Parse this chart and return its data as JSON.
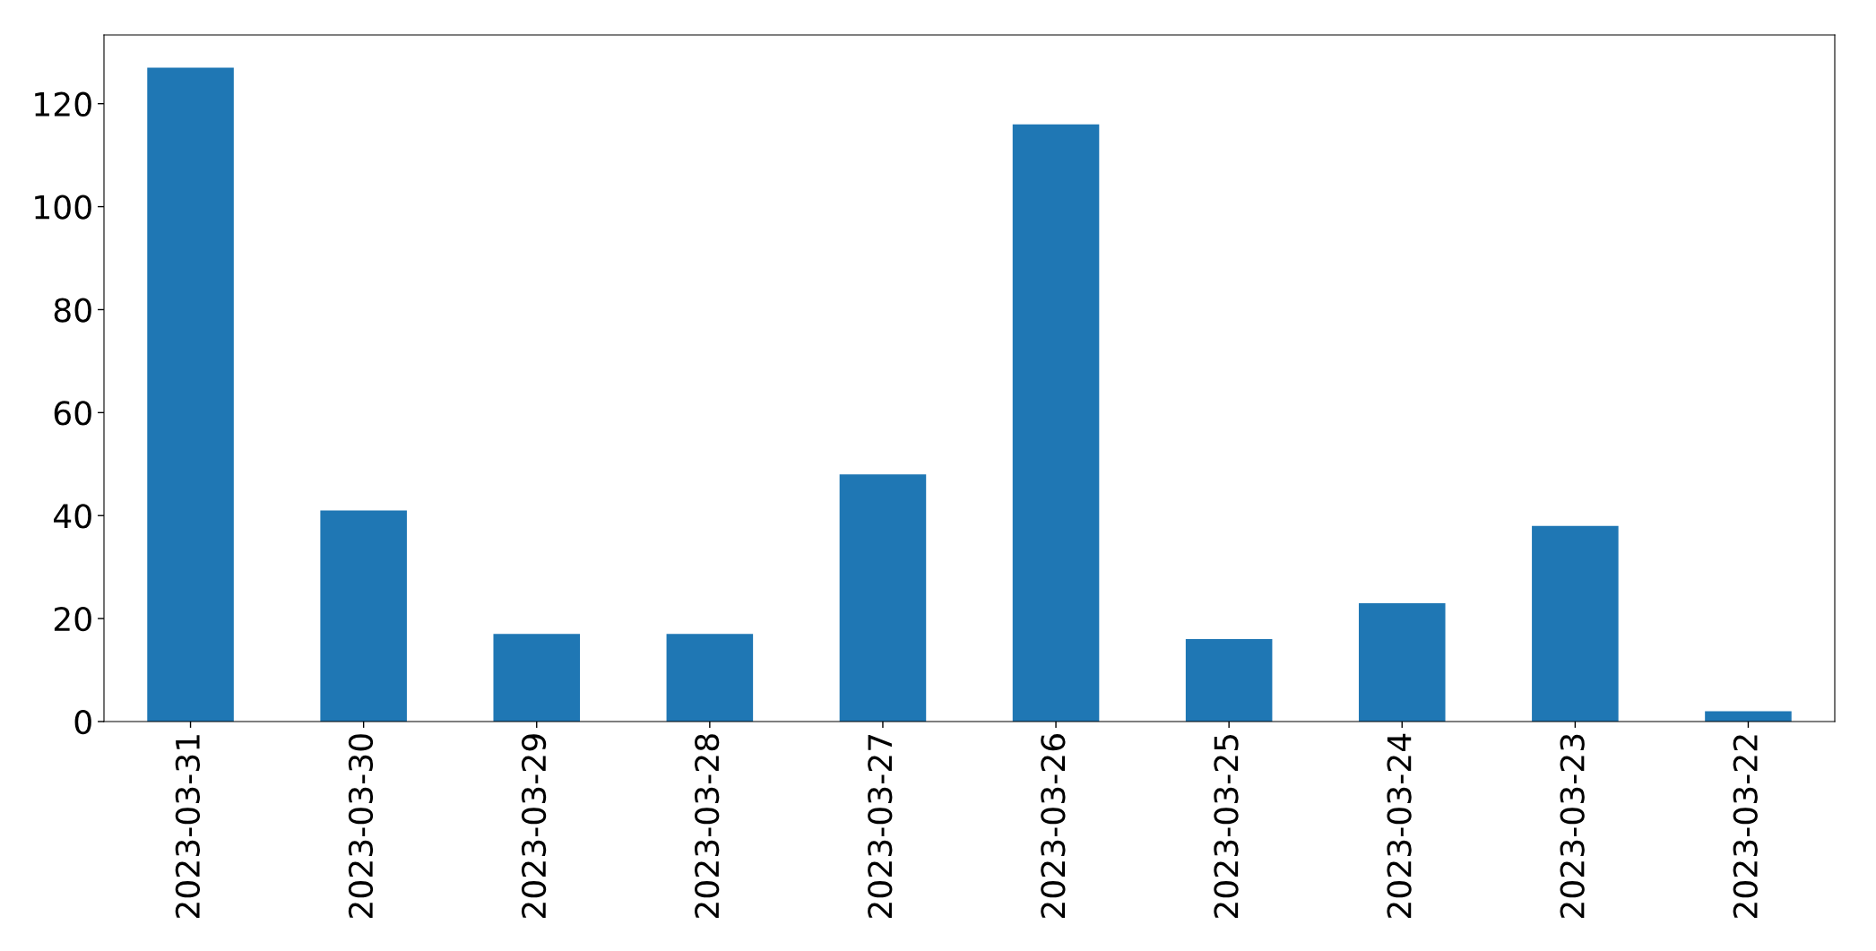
{
  "chart_data": {
    "type": "bar",
    "categories": [
      "2023-03-31",
      "2023-03-30",
      "2023-03-29",
      "2023-03-28",
      "2023-03-27",
      "2023-03-26",
      "2023-03-25",
      "2023-03-24",
      "2023-03-23",
      "2023-03-22"
    ],
    "values": [
      127,
      41,
      17,
      17,
      48,
      116,
      16,
      23,
      38,
      2
    ],
    "color": "#1f77b4",
    "ylim": [
      0,
      133.35
    ],
    "yticks": [
      0,
      20,
      40,
      60,
      80,
      100,
      120
    ],
    "grid": false,
    "legend": false
  }
}
